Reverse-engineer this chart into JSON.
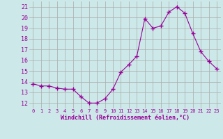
{
  "x": [
    0,
    1,
    2,
    3,
    4,
    5,
    6,
    7,
    8,
    9,
    10,
    11,
    12,
    13,
    14,
    15,
    16,
    17,
    18,
    19,
    20,
    21,
    22,
    23
  ],
  "y": [
    13.8,
    13.6,
    13.6,
    13.4,
    13.3,
    13.3,
    12.6,
    12.0,
    12.0,
    12.4,
    13.3,
    14.9,
    15.6,
    16.4,
    19.9,
    19.0,
    19.2,
    20.5,
    21.0,
    20.4,
    18.5,
    16.8,
    15.9,
    15.2
  ],
  "line_color": "#990099",
  "marker": "+",
  "marker_size": 4,
  "bg_color": "#cce8e8",
  "grid_color": "#aaaaaa",
  "xlabel": "Windchill (Refroidissement éolien,°C)",
  "xlabel_color": "#990099",
  "tick_color": "#990099",
  "ylim": [
    11.5,
    21.5
  ],
  "xlim": [
    -0.5,
    23.5
  ],
  "yticks": [
    12,
    13,
    14,
    15,
    16,
    17,
    18,
    19,
    20,
    21
  ],
  "xticks": [
    0,
    1,
    2,
    3,
    4,
    5,
    6,
    7,
    8,
    9,
    10,
    11,
    12,
    13,
    14,
    15,
    16,
    17,
    18,
    19,
    20,
    21,
    22,
    23
  ]
}
